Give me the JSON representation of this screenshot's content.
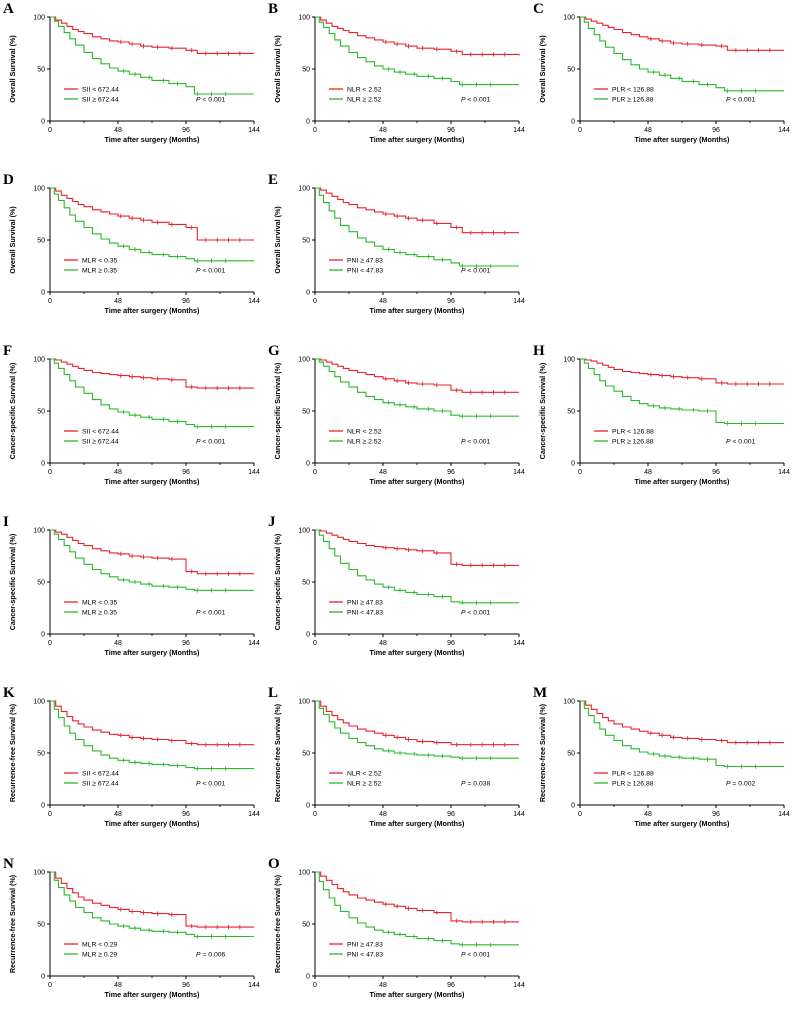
{
  "figure": {
    "x_ticks": [
      0,
      48,
      96,
      144
    ],
    "x_minor_ticks": [
      24,
      72,
      120
    ],
    "y_ticks": [
      0,
      50,
      100
    ],
    "x_red": [
      0,
      4,
      8,
      12,
      16,
      20,
      24,
      30,
      36,
      42,
      48,
      56,
      64,
      72,
      84,
      96,
      104,
      144
    ],
    "x_green": [
      0,
      3,
      6,
      10,
      14,
      18,
      24,
      30,
      36,
      42,
      48,
      56,
      64,
      72,
      84,
      96,
      102,
      144
    ],
    "censor_red": [
      50,
      58,
      66,
      76,
      86,
      100,
      110,
      118,
      126,
      134
    ],
    "censor_green": [
      52,
      60,
      70,
      80,
      90,
      104,
      114,
      124
    ],
    "colors": {
      "red": "#e8232a",
      "green": "#2db82d",
      "axis": "#000000"
    }
  },
  "chart_data": [
    {
      "type": "line",
      "panel": "A",
      "ylabel": "Overall Survival (%)",
      "xlabel": "Time after surgery (Months)",
      "xlim": [
        0,
        144
      ],
      "ylim": [
        0,
        100
      ],
      "p_value": "P < 0.001",
      "series": [
        {
          "name": "SII < 672.44",
          "color": "#e8232a",
          "y": [
            100,
            97,
            94,
            91,
            88,
            86,
            84,
            81,
            79,
            77,
            76,
            74,
            72,
            71,
            70,
            68,
            65,
            65
          ]
        },
        {
          "name": "SII ≥ 672.44",
          "color": "#2db82d",
          "y": [
            100,
            96,
            91,
            85,
            79,
            73,
            66,
            60,
            55,
            51,
            48,
            45,
            42,
            39,
            36,
            33,
            26,
            26
          ]
        }
      ]
    },
    {
      "type": "line",
      "panel": "B",
      "ylabel": "Overall Survival (%)",
      "xlabel": "Time after surgery (Months)",
      "xlim": [
        0,
        144
      ],
      "ylim": [
        0,
        100
      ],
      "p_value": "P < 0.001",
      "series": [
        {
          "name": "NLR < 2.52",
          "color": "#e8232a",
          "y": [
            100,
            97,
            94,
            91,
            89,
            87,
            85,
            82,
            80,
            78,
            76,
            74,
            72,
            70,
            69,
            67,
            64,
            63
          ]
        },
        {
          "name": "NLR ≥ 2.52",
          "color": "#2db82d",
          "y": [
            100,
            95,
            90,
            84,
            78,
            72,
            66,
            61,
            57,
            53,
            50,
            47,
            45,
            43,
            41,
            38,
            35,
            35
          ]
        }
      ]
    },
    {
      "type": "line",
      "panel": "C",
      "ylabel": "Overall Survival (%)",
      "xlabel": "Time after surgery (Months)",
      "xlim": [
        0,
        144
      ],
      "ylim": [
        0,
        100
      ],
      "p_value": "P < 0.001",
      "series": [
        {
          "name": "PLR < 126.88",
          "color": "#e8232a",
          "y": [
            100,
            98,
            96,
            94,
            92,
            90,
            88,
            85,
            83,
            81,
            79,
            77,
            75,
            74,
            73,
            72,
            68,
            68
          ]
        },
        {
          "name": "PLR ≥ 126.88",
          "color": "#2db82d",
          "y": [
            100,
            95,
            89,
            83,
            77,
            71,
            65,
            59,
            54,
            50,
            47,
            44,
            41,
            38,
            35,
            32,
            29,
            29
          ]
        }
      ]
    },
    {
      "type": "line",
      "panel": "D",
      "ylabel": "Overall Survival (%)",
      "xlabel": "Time after surgery (Months)",
      "xlim": [
        0,
        144
      ],
      "ylim": [
        0,
        100
      ],
      "p_value": "P < 0.001",
      "series": [
        {
          "name": "MLR < 0.35",
          "color": "#e8232a",
          "y": [
            100,
            97,
            93,
            90,
            87,
            84,
            82,
            79,
            77,
            75,
            73,
            71,
            69,
            67,
            65,
            62,
            50,
            50
          ]
        },
        {
          "name": "MLR ≥ 0.35",
          "color": "#2db82d",
          "y": [
            100,
            94,
            88,
            81,
            74,
            68,
            62,
            56,
            51,
            47,
            44,
            41,
            38,
            36,
            34,
            32,
            30,
            30
          ]
        }
      ]
    },
    {
      "type": "line",
      "panel": "E",
      "ylabel": "Overall Survival (%)",
      "xlabel": "Time after surgery (Months)",
      "xlim": [
        0,
        144
      ],
      "ylim": [
        0,
        100
      ],
      "p_value": "P < 0.001",
      "series": [
        {
          "name": "PNI ≥ 47.83",
          "color": "#e8232a",
          "y": [
            100,
            98,
            95,
            92,
            89,
            86,
            84,
            81,
            79,
            77,
            75,
            73,
            71,
            69,
            66,
            62,
            57,
            57
          ]
        },
        {
          "name": "PNI < 47.83",
          "color": "#2db82d",
          "y": [
            100,
            93,
            86,
            78,
            71,
            64,
            58,
            52,
            48,
            44,
            41,
            38,
            36,
            34,
            31,
            28,
            25,
            25
          ]
        }
      ]
    },
    {
      "type": "line",
      "panel": "F",
      "ylabel": "Cancer-specific Survival (%)",
      "xlabel": "Time after surgery (Months)",
      "xlim": [
        0,
        144
      ],
      "ylim": [
        0,
        100
      ],
      "p_value": "P < 0.001",
      "series": [
        {
          "name": "SII < 672.44",
          "color": "#e8232a",
          "y": [
            100,
            99,
            97,
            95,
            93,
            91,
            89,
            87,
            86,
            85,
            84,
            83,
            82,
            81,
            80,
            73,
            72,
            72
          ]
        },
        {
          "name": "SII ≥ 672.44",
          "color": "#2db82d",
          "y": [
            100,
            96,
            91,
            85,
            79,
            73,
            67,
            61,
            56,
            52,
            49,
            46,
            44,
            42,
            40,
            37,
            35,
            35
          ]
        }
      ]
    },
    {
      "type": "line",
      "panel": "G",
      "ylabel": "Cancer-specific Survival (%)",
      "xlabel": "Time after surgery (Months)",
      "xlim": [
        0,
        144
      ],
      "ylim": [
        0,
        100
      ],
      "p_value": "P < 0.001",
      "series": [
        {
          "name": "NLR < 2.52",
          "color": "#e8232a",
          "y": [
            100,
            99,
            97,
            95,
            93,
            91,
            89,
            87,
            85,
            83,
            81,
            79,
            77,
            76,
            75,
            70,
            68,
            68
          ]
        },
        {
          "name": "NLR ≥ 2.52",
          "color": "#2db82d",
          "y": [
            100,
            97,
            93,
            88,
            83,
            78,
            73,
            68,
            64,
            61,
            58,
            56,
            54,
            52,
            50,
            46,
            45,
            45
          ]
        }
      ]
    },
    {
      "type": "line",
      "panel": "H",
      "ylabel": "Cancer-specific Survival (%)",
      "xlabel": "Time after surgery (Months)",
      "xlim": [
        0,
        144
      ],
      "ylim": [
        0,
        100
      ],
      "p_value": "P < 0.001",
      "series": [
        {
          "name": "PLR < 126.88",
          "color": "#e8232a",
          "y": [
            100,
            99,
            98,
            96,
            94,
            92,
            90,
            88,
            87,
            86,
            85,
            84,
            83,
            82,
            81,
            77,
            76,
            76
          ]
        },
        {
          "name": "PLR ≥ 126.88",
          "color": "#2db82d",
          "y": [
            100,
            96,
            91,
            85,
            79,
            74,
            69,
            64,
            60,
            57,
            55,
            53,
            52,
            51,
            50,
            39,
            38,
            38
          ]
        }
      ]
    },
    {
      "type": "line",
      "panel": "I",
      "ylabel": "Cancer-specific Survival (%)",
      "xlabel": "Time after surgery (Months)",
      "xlim": [
        0,
        144
      ],
      "ylim": [
        0,
        100
      ],
      "p_value": "P < 0.001",
      "series": [
        {
          "name": "MLR < 0.35",
          "color": "#e8232a",
          "y": [
            100,
            98,
            96,
            93,
            90,
            87,
            85,
            82,
            80,
            78,
            77,
            75,
            74,
            73,
            72,
            60,
            58,
            58
          ]
        },
        {
          "name": "MLR ≥ 0.35",
          "color": "#2db82d",
          "y": [
            100,
            96,
            91,
            85,
            79,
            73,
            67,
            62,
            58,
            55,
            52,
            50,
            48,
            46,
            45,
            43,
            42,
            42
          ]
        }
      ]
    },
    {
      "type": "line",
      "panel": "J",
      "ylabel": "Cancer-specific Survival (%)",
      "xlabel": "Time after surgery (Months)",
      "xlim": [
        0,
        144
      ],
      "ylim": [
        0,
        100
      ],
      "p_value": "P < 0.001",
      "series": [
        {
          "name": "PNI ≥ 47.83",
          "color": "#e8232a",
          "y": [
            100,
            99,
            97,
            95,
            93,
            91,
            89,
            87,
            85,
            84,
            83,
            82,
            81,
            80,
            78,
            67,
            66,
            66
          ]
        },
        {
          "name": "PNI < 47.83",
          "color": "#2db82d",
          "y": [
            100,
            95,
            89,
            82,
            75,
            68,
            62,
            56,
            52,
            48,
            45,
            42,
            40,
            38,
            36,
            31,
            30,
            30
          ]
        }
      ]
    },
    {
      "type": "line",
      "panel": "K",
      "ylabel": "Recurrence-free Survival (%)",
      "xlabel": "Time after surgery (Months)",
      "xlim": [
        0,
        144
      ],
      "ylim": [
        0,
        100
      ],
      "p_value": "P < 0.001",
      "series": [
        {
          "name": "SII < 672.44",
          "color": "#e8232a",
          "y": [
            100,
            95,
            90,
            85,
            81,
            78,
            75,
            72,
            70,
            68,
            67,
            65,
            64,
            63,
            62,
            59,
            58,
            58
          ]
        },
        {
          "name": "SII ≥ 672.44",
          "color": "#2db82d",
          "y": [
            100,
            92,
            84,
            76,
            69,
            63,
            57,
            52,
            48,
            45,
            43,
            41,
            40,
            39,
            38,
            36,
            35,
            35
          ]
        }
      ]
    },
    {
      "type": "line",
      "panel": "L",
      "ylabel": "Recurrence-free Survival (%)",
      "xlabel": "Time after surgery (Months)",
      "xlim": [
        0,
        144
      ],
      "ylim": [
        0,
        100
      ],
      "p_value": "P = 0.038",
      "series": [
        {
          "name": "NLR < 2.52",
          "color": "#e8232a",
          "y": [
            100,
            95,
            90,
            86,
            82,
            79,
            76,
            73,
            71,
            69,
            67,
            65,
            63,
            61,
            60,
            58,
            58,
            58
          ]
        },
        {
          "name": "NLR ≥ 2.52",
          "color": "#2db82d",
          "y": [
            100,
            93,
            87,
            80,
            74,
            69,
            64,
            60,
            57,
            54,
            52,
            50,
            49,
            48,
            47,
            46,
            45,
            45
          ]
        }
      ]
    },
    {
      "type": "line",
      "panel": "M",
      "ylabel": "Recurrence-free Survival (%)",
      "xlabel": "Time after surgery (Months)",
      "xlim": [
        0,
        144
      ],
      "ylim": [
        0,
        100
      ],
      "p_value": "P = 0.002",
      "series": [
        {
          "name": "PLR < 126.88",
          "color": "#e8232a",
          "y": [
            100,
            96,
            92,
            88,
            84,
            81,
            78,
            75,
            73,
            71,
            69,
            67,
            65,
            64,
            63,
            62,
            60,
            60
          ]
        },
        {
          "name": "PLR ≥ 126.88",
          "color": "#2db82d",
          "y": [
            100,
            93,
            86,
            79,
            73,
            67,
            62,
            57,
            54,
            51,
            49,
            47,
            46,
            45,
            44,
            38,
            37,
            37
          ]
        }
      ]
    },
    {
      "type": "line",
      "panel": "N",
      "ylabel": "Recurrence-free Survival (%)",
      "xlabel": "Time after surgery (Months)",
      "xlim": [
        0,
        144
      ],
      "ylim": [
        0,
        100
      ],
      "p_value": "P = 0.006",
      "series": [
        {
          "name": "MLR < 0.29",
          "color": "#e8232a",
          "y": [
            100,
            94,
            89,
            84,
            80,
            76,
            73,
            70,
            68,
            66,
            64,
            62,
            61,
            60,
            59,
            48,
            47,
            47
          ]
        },
        {
          "name": "MLR ≥ 0.29",
          "color": "#2db82d",
          "y": [
            100,
            92,
            85,
            78,
            72,
            66,
            61,
            56,
            53,
            50,
            48,
            46,
            44,
            43,
            42,
            40,
            38,
            38
          ]
        }
      ]
    },
    {
      "type": "line",
      "panel": "O",
      "ylabel": "Recurrence-free Survival (%)",
      "xlabel": "Time after surgery (Months)",
      "xlim": [
        0,
        144
      ],
      "ylim": [
        0,
        100
      ],
      "p_value": "P < 0.001",
      "series": [
        {
          "name": "PNI ≥ 47.83",
          "color": "#e8232a",
          "y": [
            100,
            96,
            92,
            88,
            84,
            81,
            78,
            75,
            73,
            71,
            69,
            67,
            65,
            63,
            61,
            53,
            52,
            52
          ]
        },
        {
          "name": "PNI < 47.83",
          "color": "#2db82d",
          "y": [
            100,
            91,
            83,
            75,
            68,
            62,
            56,
            51,
            47,
            44,
            42,
            40,
            38,
            36,
            34,
            31,
            30,
            30
          ]
        }
      ]
    }
  ]
}
